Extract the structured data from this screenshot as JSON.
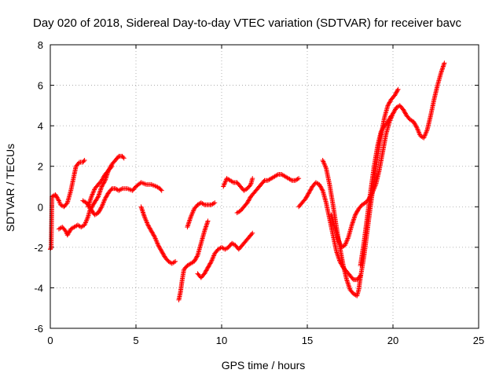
{
  "chart_data": {
    "type": "scatter",
    "title": "Day 020 of 2018, Sidereal Day-to-day VTEC variation (SDTVAR) for receiver bavc",
    "xlabel": "GPS time / hours",
    "ylabel": "SDTVAR / TECUs",
    "xlim": [
      0,
      25
    ],
    "ylim": [
      -6,
      8
    ],
    "xticks": [
      0,
      5,
      10,
      15,
      20,
      25
    ],
    "yticks": [
      -6,
      -4,
      -2,
      0,
      2,
      4,
      6,
      8
    ],
    "grid": true,
    "marker": "+",
    "color": "#ff0000",
    "segments": [
      [
        [
          0.0,
          -2.1
        ],
        [
          0.05,
          -2.0
        ],
        [
          0.1,
          0.5
        ],
        [
          0.3,
          0.6
        ],
        [
          0.5,
          0.3
        ],
        [
          0.6,
          0.1
        ],
        [
          0.8,
          0.0
        ],
        [
          1.0,
          0.2
        ],
        [
          1.2,
          0.8
        ],
        [
          1.4,
          1.6
        ],
        [
          1.5,
          2.0
        ],
        [
          1.7,
          2.2
        ],
        [
          1.9,
          2.2
        ],
        [
          2.0,
          2.3
        ]
      ],
      [
        [
          0.5,
          -1.1
        ],
        [
          0.7,
          -1.0
        ],
        [
          0.9,
          -1.2
        ],
        [
          1.0,
          -1.4
        ],
        [
          1.2,
          -1.1
        ],
        [
          1.4,
          -1.0
        ],
        [
          1.6,
          -0.9
        ],
        [
          1.8,
          -1.0
        ],
        [
          2.0,
          -0.9
        ],
        [
          2.2,
          -0.5
        ],
        [
          2.3,
          -0.2
        ],
        [
          2.5,
          0.1
        ],
        [
          2.8,
          0.5
        ],
        [
          3.0,
          1.0
        ],
        [
          3.2,
          1.3
        ],
        [
          3.4,
          1.8
        ],
        [
          3.6,
          2.1
        ],
        [
          3.8,
          2.3
        ],
        [
          4.0,
          2.5
        ],
        [
          4.2,
          2.5
        ],
        [
          4.3,
          2.4
        ]
      ],
      [
        [
          1.9,
          0.3
        ],
        [
          2.1,
          0.2
        ],
        [
          2.3,
          0.0
        ],
        [
          2.5,
          -0.3
        ],
        [
          2.6,
          -0.4
        ],
        [
          2.8,
          -0.3
        ],
        [
          3.0,
          0.0
        ],
        [
          3.2,
          0.4
        ],
        [
          3.4,
          0.7
        ],
        [
          3.6,
          0.9
        ],
        [
          3.8,
          0.9
        ],
        [
          4.0,
          0.8
        ],
        [
          4.2,
          0.9
        ],
        [
          4.5,
          0.9
        ],
        [
          4.8,
          0.8
        ],
        [
          5.0,
          1.0
        ],
        [
          5.3,
          1.2
        ],
        [
          5.6,
          1.1
        ],
        [
          5.9,
          1.1
        ],
        [
          6.2,
          1.0
        ],
        [
          6.4,
          0.9
        ],
        [
          6.5,
          0.8
        ]
      ],
      [
        [
          2.2,
          0.0
        ],
        [
          2.4,
          0.5
        ],
        [
          2.6,
          0.9
        ],
        [
          2.8,
          1.1
        ],
        [
          3.0,
          1.3
        ],
        [
          3.2,
          1.6
        ],
        [
          3.4,
          1.8
        ],
        [
          3.6,
          2.0
        ]
      ],
      [
        [
          5.3,
          0.0
        ],
        [
          5.5,
          -0.5
        ],
        [
          5.7,
          -0.9
        ],
        [
          5.9,
          -1.2
        ],
        [
          6.1,
          -1.5
        ],
        [
          6.3,
          -1.9
        ],
        [
          6.5,
          -2.2
        ],
        [
          6.7,
          -2.5
        ],
        [
          6.9,
          -2.7
        ],
        [
          7.1,
          -2.8
        ],
        [
          7.3,
          -2.7
        ]
      ],
      [
        [
          7.5,
          -4.6
        ],
        [
          7.6,
          -4.2
        ],
        [
          7.7,
          -3.6
        ],
        [
          7.8,
          -3.1
        ],
        [
          8.0,
          -2.9
        ],
        [
          8.2,
          -2.8
        ],
        [
          8.4,
          -2.7
        ],
        [
          8.6,
          -2.4
        ],
        [
          8.8,
          -1.8
        ],
        [
          9.0,
          -1.2
        ],
        [
          9.2,
          -0.7
        ]
      ],
      [
        [
          8.0,
          -1.0
        ],
        [
          8.2,
          -0.5
        ],
        [
          8.4,
          -0.1
        ],
        [
          8.6,
          0.1
        ],
        [
          8.8,
          0.2
        ],
        [
          9.0,
          0.1
        ],
        [
          9.2,
          0.1
        ],
        [
          9.4,
          0.1
        ],
        [
          9.6,
          0.2
        ]
      ],
      [
        [
          8.6,
          -3.3
        ],
        [
          8.8,
          -3.5
        ],
        [
          9.0,
          -3.3
        ],
        [
          9.2,
          -3.0
        ],
        [
          9.4,
          -2.7
        ],
        [
          9.6,
          -2.3
        ],
        [
          9.8,
          -2.1
        ],
        [
          10.0,
          -2.0
        ],
        [
          10.2,
          -2.1
        ],
        [
          10.4,
          -2.0
        ],
        [
          10.6,
          -1.8
        ],
        [
          10.8,
          -1.9
        ],
        [
          11.0,
          -2.1
        ],
        [
          11.2,
          -1.9
        ],
        [
          11.4,
          -1.7
        ],
        [
          11.6,
          -1.5
        ],
        [
          11.8,
          -1.3
        ]
      ],
      [
        [
          10.1,
          1.0
        ],
        [
          10.3,
          1.4
        ],
        [
          10.5,
          1.3
        ],
        [
          10.7,
          1.2
        ],
        [
          10.9,
          1.2
        ],
        [
          11.1,
          1.0
        ],
        [
          11.3,
          0.8
        ],
        [
          11.5,
          0.9
        ],
        [
          11.7,
          1.1
        ],
        [
          11.8,
          1.4
        ]
      ],
      [
        [
          10.9,
          -0.3
        ],
        [
          11.1,
          -0.2
        ],
        [
          11.3,
          0.0
        ],
        [
          11.5,
          0.2
        ],
        [
          11.7,
          0.5
        ],
        [
          11.9,
          0.7
        ],
        [
          12.1,
          0.9
        ],
        [
          12.3,
          1.1
        ],
        [
          12.5,
          1.3
        ],
        [
          12.7,
          1.3
        ],
        [
          12.9,
          1.4
        ],
        [
          13.1,
          1.5
        ],
        [
          13.3,
          1.6
        ],
        [
          13.5,
          1.6
        ],
        [
          13.7,
          1.5
        ],
        [
          13.9,
          1.4
        ],
        [
          14.1,
          1.3
        ],
        [
          14.3,
          1.3
        ],
        [
          14.5,
          1.4
        ]
      ],
      [
        [
          14.5,
          0.0
        ],
        [
          14.7,
          0.2
        ],
        [
          14.9,
          0.4
        ],
        [
          15.1,
          0.7
        ],
        [
          15.3,
          1.0
        ],
        [
          15.5,
          1.2
        ],
        [
          15.7,
          1.1
        ],
        [
          15.9,
          0.8
        ],
        [
          16.1,
          0.2
        ],
        [
          16.3,
          -0.6
        ],
        [
          16.5,
          -1.4
        ],
        [
          16.7,
          -2.2
        ],
        [
          16.9,
          -2.7
        ],
        [
          17.1,
          -3.0
        ],
        [
          17.3,
          -3.2
        ],
        [
          17.5,
          -3.4
        ],
        [
          17.7,
          -3.6
        ],
        [
          17.9,
          -3.6
        ],
        [
          18.1,
          -3.4
        ]
      ],
      [
        [
          15.9,
          2.3
        ],
        [
          16.1,
          1.9
        ],
        [
          16.3,
          1.1
        ],
        [
          16.5,
          0.1
        ],
        [
          16.7,
          -1.0
        ],
        [
          16.9,
          -2.0
        ],
        [
          17.1,
          -2.9
        ],
        [
          17.3,
          -3.6
        ],
        [
          17.5,
          -4.1
        ],
        [
          17.7,
          -4.3
        ],
        [
          17.9,
          -4.4
        ],
        [
          18.0,
          -4.1
        ],
        [
          18.1,
          -3.5
        ],
        [
          18.3,
          -2.5
        ],
        [
          18.5,
          -1.2
        ],
        [
          18.7,
          0.1
        ],
        [
          18.9,
          1.3
        ],
        [
          19.1,
          2.5
        ],
        [
          19.3,
          3.5
        ],
        [
          19.5,
          4.4
        ],
        [
          19.7,
          5.0
        ],
        [
          19.9,
          5.3
        ],
        [
          20.1,
          5.5
        ],
        [
          20.3,
          5.8
        ]
      ],
      [
        [
          16.4,
          -0.4
        ],
        [
          16.6,
          -1.0
        ],
        [
          16.8,
          -1.6
        ],
        [
          17.0,
          -2.0
        ],
        [
          17.2,
          -1.9
        ],
        [
          17.4,
          -1.5
        ],
        [
          17.6,
          -0.9
        ],
        [
          17.8,
          -0.4
        ],
        [
          18.0,
          -0.1
        ],
        [
          18.2,
          0.1
        ],
        [
          18.4,
          0.2
        ],
        [
          18.6,
          0.4
        ],
        [
          18.8,
          0.7
        ],
        [
          19.0,
          1.1
        ],
        [
          19.2,
          1.8
        ],
        [
          19.4,
          2.7
        ],
        [
          19.6,
          3.6
        ],
        [
          19.8,
          4.2
        ],
        [
          20.0,
          4.6
        ],
        [
          20.2,
          4.9
        ],
        [
          20.4,
          5.0
        ],
        [
          20.6,
          4.8
        ],
        [
          20.8,
          4.5
        ],
        [
          21.0,
          4.3
        ],
        [
          21.2,
          4.2
        ],
        [
          21.4,
          3.9
        ],
        [
          21.6,
          3.5
        ],
        [
          21.8,
          3.4
        ],
        [
          22.0,
          3.8
        ],
        [
          22.2,
          4.5
        ],
        [
          22.4,
          5.3
        ],
        [
          22.6,
          6.0
        ],
        [
          22.8,
          6.6
        ],
        [
          23.0,
          7.1
        ]
      ],
      [
        [
          18.1,
          -2.9
        ],
        [
          18.3,
          -1.8
        ],
        [
          18.5,
          -0.5
        ],
        [
          18.7,
          0.8
        ],
        [
          18.9,
          2.0
        ],
        [
          19.1,
          3.0
        ],
        [
          19.3,
          3.7
        ],
        [
          19.5,
          4.0
        ],
        [
          19.7,
          4.2
        ],
        [
          19.9,
          4.5
        ]
      ]
    ]
  }
}
